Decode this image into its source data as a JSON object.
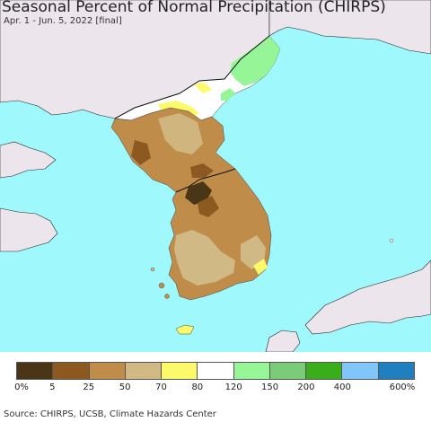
{
  "title": "Seasonal Percent of Normal Precipitation (CHIRPS)",
  "subtitle": "Apr. 1 - Jun. 5, 2022 [final]",
  "source": "Source: CHIRPS, UCSB, Climate Hazards Center",
  "legend": {
    "colors": [
      "#4a3516",
      "#8c5a21",
      "#bf8c4a",
      "#d1b985",
      "#fcf96b",
      "#ffffff",
      "#96f596",
      "#7bcc78",
      "#3aad1a",
      "#80c6f9",
      "#1f7fbf"
    ],
    "labels": [
      "0%",
      "5",
      "25",
      "50",
      "70",
      "80",
      "120",
      "150",
      "200",
      "400",
      "600%"
    ]
  },
  "map_colors": {
    "ocean": "#9ef8fc",
    "land_outside": "#ece6ec",
    "very_dry": "#4a3516",
    "dry": "#8c5a21",
    "below": "#bf8c4a",
    "slightly_below": "#d1b985",
    "near_low": "#fcf96b",
    "normal": "#ffffff",
    "wet": "#96f596"
  }
}
